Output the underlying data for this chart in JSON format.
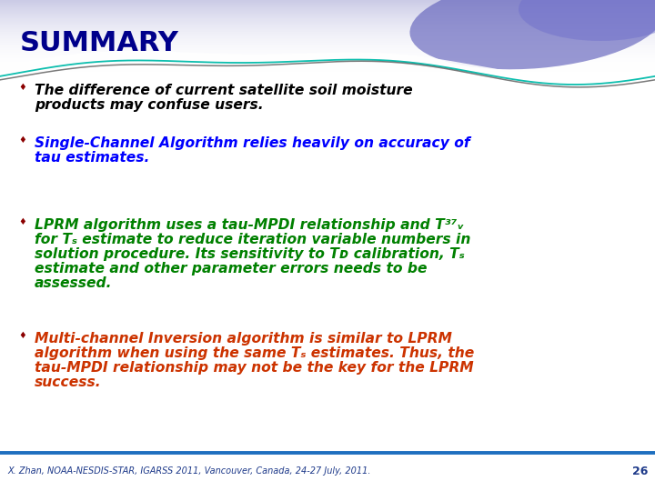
{
  "title": "SUMMARY",
  "title_color": "#00008B",
  "title_fontsize": 22,
  "bg_color": "#FFFFFF",
  "footer_text": "X. Zhan, NOAA-NESDIS-STAR, IGARSS 2011, Vancouver, Canada, 24-27 July, 2011.",
  "footer_page": "26",
  "footer_color": "#1E3A8A",
  "footer_line_color": "#1E6FBF",
  "bullet_color": "#8B0000",
  "bullets": [
    {
      "lines": [
        "The difference of current satellite soil moisture",
        "products may confuse users."
      ],
      "color": "#000000"
    },
    {
      "lines": [
        "Single-Channel Algorithm relies heavily on accuracy of",
        "tau estimates."
      ],
      "color": "#0000FF"
    },
    {
      "lines": [
        "LPRM algorithm uses a tau-MPDI relationship and T³⁷ᵥ",
        "for Tₛ estimate to reduce iteration variable numbers in",
        "solution procedure. Its sensitivity to Tᴅ calibration, Tₛ",
        "estimate and other parameter errors needs to be",
        "assessed."
      ],
      "color": "#008000"
    },
    {
      "lines": [
        "Multi-channel Inversion algorithm is similar to LPRM",
        "algorithm when using the same Tₛ estimates. Thus, the",
        "tau-MPDI relationship may not be the key for the LPRM",
        "success."
      ],
      "color": "#CC3300"
    }
  ]
}
